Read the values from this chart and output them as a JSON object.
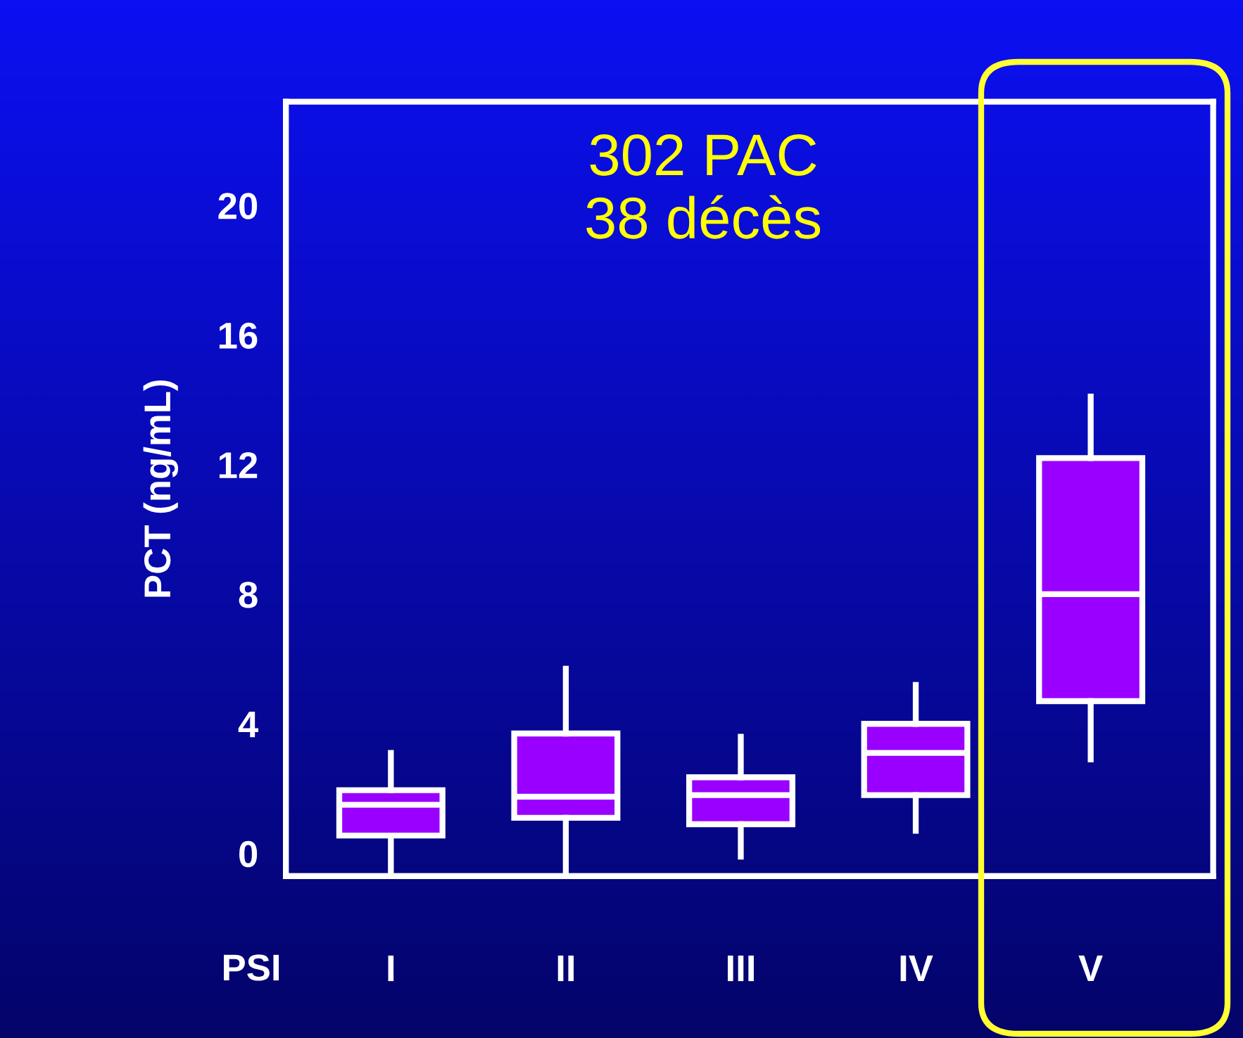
{
  "chart_data": {
    "type": "box",
    "ylabel": "PCT (ng/mL)",
    "xlabel": "PSI",
    "categories": [
      "I",
      "II",
      "III",
      "IV",
      "V"
    ],
    "boxes": [
      {
        "low": -0.6,
        "q1": 0.55,
        "median": 1.5,
        "q3": 1.95,
        "high": 3.1
      },
      {
        "low": -0.6,
        "q1": 1.1,
        "median": 1.75,
        "q3": 3.7,
        "high": 5.7
      },
      {
        "low": -0.1,
        "q1": 0.9,
        "median": 1.8,
        "q3": 2.35,
        "high": 3.6
      },
      {
        "low": 0.7,
        "q1": 1.8,
        "median": 3.1,
        "q3": 4.0,
        "high": 5.2
      },
      {
        "low": 2.9,
        "q1": 4.7,
        "median": 8.0,
        "q3": 12.2,
        "high": 14.1
      }
    ],
    "color": "#9900ff",
    "ylim": [
      -0.7,
      23.2
    ],
    "yticks": [
      0,
      4,
      8,
      12,
      16,
      20
    ],
    "annotations": [
      "302 PAC\n38 décès"
    ],
    "grid": false,
    "legend": false
  }
}
